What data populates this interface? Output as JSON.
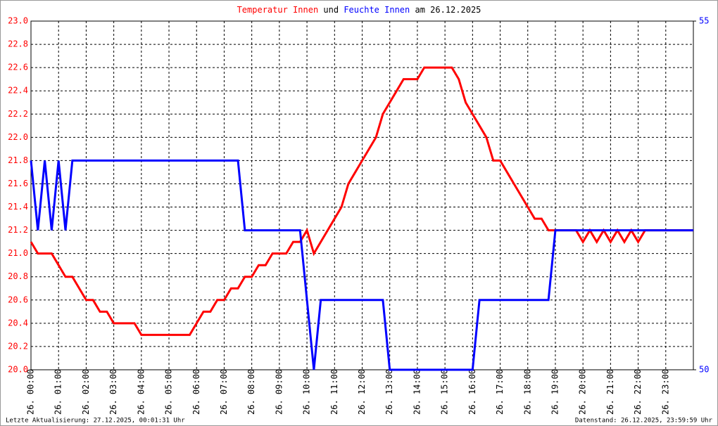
{
  "chart_data": {
    "type": "line",
    "title_parts": [
      "und",
      "am 26.12.2025"
    ],
    "footer_left": "Letzte Aktualisierung: 27.12.2025, 00:01:31 Uhr",
    "footer_right": "Datenstand: 26.12.2025, 23:59:59 Uhr",
    "grid": true,
    "xlim": [
      0,
      24
    ],
    "xticks": [
      {
        "value": 0,
        "label": "26. 00:00"
      },
      {
        "value": 1,
        "label": "26. 01:00"
      },
      {
        "value": 2,
        "label": "26. 02:00"
      },
      {
        "value": 3,
        "label": "26. 03:00"
      },
      {
        "value": 4,
        "label": "26. 04:00"
      },
      {
        "value": 5,
        "label": "26. 05:00"
      },
      {
        "value": 6,
        "label": "26. 06:00"
      },
      {
        "value": 7,
        "label": "26. 07:00"
      },
      {
        "value": 8,
        "label": "26. 08:00"
      },
      {
        "value": 9,
        "label": "26. 09:00"
      },
      {
        "value": 10,
        "label": "26. 10:00"
      },
      {
        "value": 11,
        "label": "26. 11:00"
      },
      {
        "value": 12,
        "label": "26. 12:00"
      },
      {
        "value": 13,
        "label": "26. 13:00"
      },
      {
        "value": 14,
        "label": "26. 14:00"
      },
      {
        "value": 15,
        "label": "26. 15:00"
      },
      {
        "value": 16,
        "label": "26. 16:00"
      },
      {
        "value": 17,
        "label": "26. 17:00"
      },
      {
        "value": 18,
        "label": "26. 18:00"
      },
      {
        "value": 19,
        "label": "26. 19:00"
      },
      {
        "value": 20,
        "label": "26. 20:00"
      },
      {
        "value": 21,
        "label": "26. 21:00"
      },
      {
        "value": 22,
        "label": "26. 22:00"
      },
      {
        "value": 23,
        "label": "26. 23:00"
      }
    ],
    "ylim": [
      20,
      23
    ],
    "yticks": [
      {
        "value": 20,
        "label": "20.0"
      },
      20.2,
      20.4,
      20.6,
      20.8,
      {
        "value": 21,
        "label": "21.0"
      },
      21.2,
      21.4,
      21.6,
      21.8,
      {
        "value": 22,
        "label": "22.0"
      },
      22.2,
      22.4,
      22.6,
      22.8,
      {
        "value": 23,
        "label": "23.0"
      }
    ],
    "y2lim": [
      50,
      55
    ],
    "y2ticks": [
      50,
      55
    ],
    "x": [
      0,
      0.25,
      0.5,
      0.75,
      1,
      1.25,
      1.5,
      1.75,
      2,
      2.25,
      2.5,
      2.75,
      3,
      3.25,
      3.5,
      3.75,
      4,
      4.25,
      4.5,
      4.75,
      5,
      5.25,
      5.5,
      5.75,
      6,
      6.25,
      6.5,
      6.75,
      7,
      7.25,
      7.5,
      7.75,
      8,
      8.25,
      8.5,
      8.75,
      9,
      9.25,
      9.5,
      9.75,
      10,
      10.25,
      10.5,
      10.75,
      11,
      11.25,
      11.5,
      11.75,
      12,
      12.25,
      12.5,
      12.75,
      13,
      13.25,
      13.5,
      13.75,
      14,
      14.25,
      14.5,
      14.75,
      15,
      15.25,
      15.5,
      15.75,
      16,
      16.25,
      16.5,
      16.75,
      17,
      17.25,
      17.5,
      17.75,
      18,
      18.25,
      18.5,
      18.75,
      19,
      19.25,
      19.5,
      19.75,
      20,
      20.25,
      20.5,
      20.75,
      21,
      21.25,
      21.5,
      21.75,
      22,
      22.25,
      22.5,
      22.75,
      23,
      23.25,
      23.5,
      23.75,
      24
    ],
    "series": [
      {
        "name": "Temperatur Innen",
        "color": "#ff0000",
        "axis": "y",
        "values": [
          21.1,
          21.0,
          21.0,
          21.0,
          20.9,
          20.8,
          20.8,
          20.7,
          20.6,
          20.6,
          20.5,
          20.5,
          20.4,
          20.4,
          20.4,
          20.4,
          20.3,
          20.3,
          20.3,
          20.3,
          20.3,
          20.3,
          20.3,
          20.3,
          20.4,
          20.5,
          20.5,
          20.6,
          20.6,
          20.7,
          20.7,
          20.8,
          20.8,
          20.9,
          20.9,
          21.0,
          21.0,
          21.0,
          21.1,
          21.1,
          21.2,
          21.0,
          21.1,
          21.2,
          21.3,
          21.4,
          21.6,
          21.7,
          21.8,
          21.9,
          22.0,
          22.2,
          22.3,
          22.4,
          22.5,
          22.5,
          22.5,
          22.6,
          22.6,
          22.6,
          22.6,
          22.6,
          22.5,
          22.3,
          22.2,
          22.1,
          22.0,
          21.8,
          21.8,
          21.7,
          21.6,
          21.5,
          21.4,
          21.3,
          21.3,
          21.2,
          21.2,
          21.2,
          21.2,
          21.2,
          21.1,
          21.2,
          21.1,
          21.2,
          21.1,
          21.2,
          21.1,
          21.2,
          21.1,
          21.2,
          21.2,
          21.2,
          21.2,
          21.2,
          21.2,
          21.2,
          21.2
        ]
      },
      {
        "name": "Feuchte Innen",
        "color": "#0000ff",
        "axis": "y2",
        "values": [
          53,
          52,
          53,
          52,
          53,
          52,
          53,
          53,
          53,
          53,
          53,
          53,
          53,
          53,
          53,
          53,
          53,
          53,
          53,
          53,
          53,
          53,
          53,
          53,
          53,
          53,
          53,
          53,
          53,
          53,
          53,
          52,
          52,
          52,
          52,
          52,
          52,
          52,
          52,
          52,
          51,
          50,
          51,
          51,
          51,
          51,
          51,
          51,
          51,
          51,
          51,
          51,
          50,
          50,
          50,
          50,
          50,
          50,
          50,
          50,
          50,
          50,
          50,
          50,
          50,
          51,
          51,
          51,
          51,
          51,
          51,
          51,
          51,
          51,
          51,
          51,
          52,
          52,
          52,
          52,
          52,
          52,
          52,
          52,
          52,
          52,
          52,
          52,
          52,
          52,
          52,
          52,
          52,
          52,
          52,
          52,
          52
        ]
      }
    ]
  }
}
